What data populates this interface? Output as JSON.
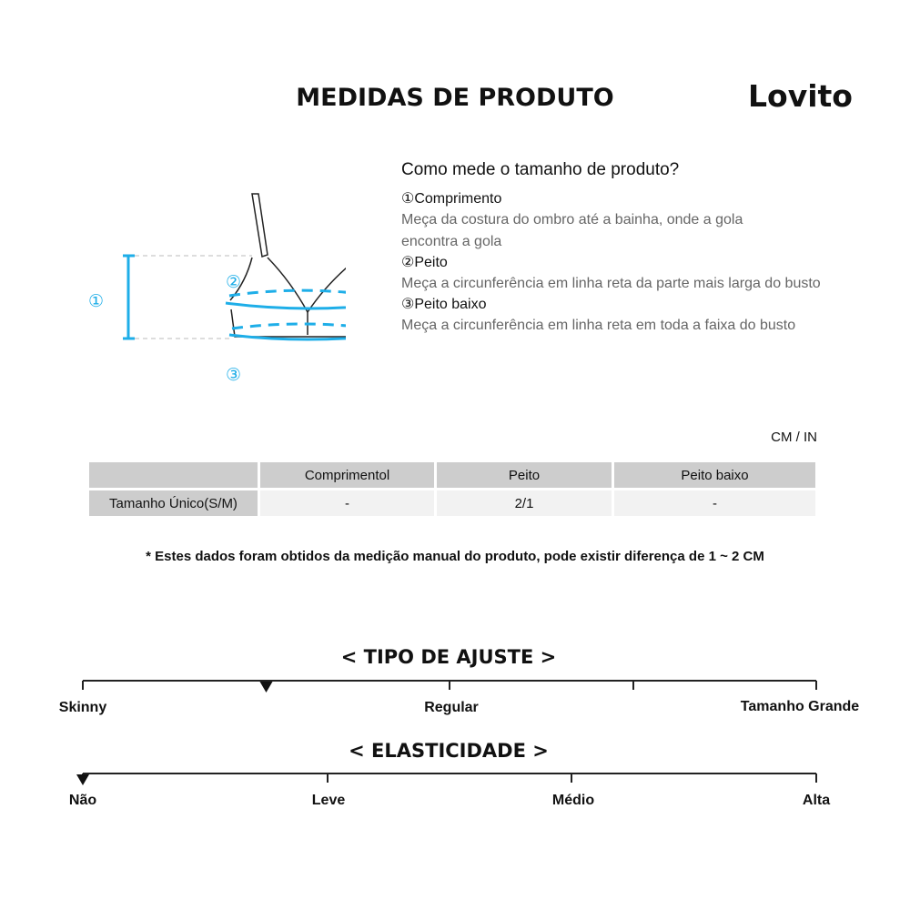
{
  "title": "MEDIDAS DE PRODUTO",
  "logo": "Lovito",
  "accent_color": "#1eaee8",
  "diagram": {
    "markers": [
      "①",
      "②",
      "③"
    ]
  },
  "howto": {
    "heading": "Como mede o tamanho de produto?",
    "items": [
      {
        "title": "①Comprimento",
        "desc": "Meça da costura do ombro até a bainha, onde a gola encontra a gola"
      },
      {
        "title": "②Peito",
        "desc": "Meça a circunferência em linha reta da parte mais larga do busto"
      },
      {
        "title": "③Peito baixo",
        "desc": "Meça a circunferência em linha reta em toda a faixa do busto"
      }
    ]
  },
  "unit": "CM / IN",
  "table": {
    "headers": [
      "",
      "Comprimentol",
      "Peito",
      "Peito baixo"
    ],
    "rows": [
      [
        "Tamanho Único(S/M)",
        "-",
        "2/1",
        "-"
      ]
    ]
  },
  "note": "* Estes dados foram obtidos da medição manual do produto, pode existir diferença de 1 ~ 2 CM",
  "fit": {
    "title": "< TIPO DE AJUSTE >",
    "labels": [
      "Skinny",
      "Regular",
      "Tamanho Grande"
    ],
    "level": 0.25
  },
  "elasticity": {
    "title": "< ELASTICIDADE >",
    "labels": [
      "Não",
      "Leve",
      "Médio",
      "Alta"
    ],
    "level": 0
  }
}
